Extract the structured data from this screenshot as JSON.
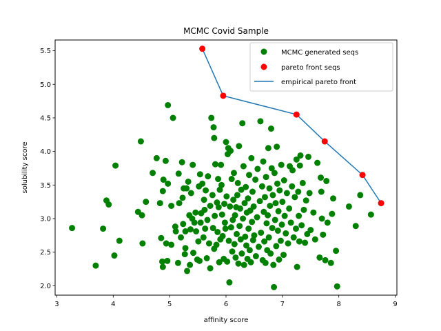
{
  "chart_data": {
    "type": "scatter",
    "title": "MCMC Covid Sample",
    "xlabel": "affinity score",
    "ylabel": "solubility score",
    "xlim": [
      2.97,
      9.03
    ],
    "ylim": [
      1.86,
      5.66
    ],
    "xticks": [
      "3",
      "4",
      "5",
      "6",
      "7",
      "8",
      "9"
    ],
    "yticks": [
      "2.0",
      "2.5",
      "3.0",
      "3.5",
      "4.0",
      "4.5",
      "5.0",
      "5.5"
    ],
    "grid": false,
    "legend_position": "top-right",
    "series": [
      {
        "name": "MCMC generated seqs",
        "kind": "scatter",
        "color": "#008000",
        "points": [
          [
            3.27,
            2.86
          ],
          [
            3.69,
            2.3
          ],
          [
            3.82,
            2.85
          ],
          [
            3.88,
            3.27
          ],
          [
            3.92,
            3.21
          ],
          [
            4.02,
            2.45
          ],
          [
            4.04,
            3.79
          ],
          [
            4.11,
            2.67
          ],
          [
            4.44,
            3.1
          ],
          [
            4.49,
            4.15
          ],
          [
            4.51,
            3.05
          ],
          [
            4.52,
            2.63
          ],
          [
            4.58,
            3.25
          ],
          [
            4.7,
            3.68
          ],
          [
            4.77,
            3.9
          ],
          [
            4.83,
            3.23
          ],
          [
            4.85,
            2.71
          ],
          [
            4.87,
            2.36
          ],
          [
            4.88,
            2.28
          ],
          [
            4.88,
            3.41
          ],
          [
            4.89,
            3.58
          ],
          [
            4.93,
            3.86
          ],
          [
            4.94,
            2.63
          ],
          [
            4.96,
            2.37
          ],
          [
            4.97,
            4.69
          ],
          [
            4.97,
            3.52
          ],
          [
            5.03,
            2.61
          ],
          [
            5.03,
            3.19
          ],
          [
            5.06,
            4.5
          ],
          [
            5.1,
            2.88
          ],
          [
            5.11,
            2.81
          ],
          [
            5.15,
            2.34
          ],
          [
            5.16,
            3.67
          ],
          [
            5.17,
            3.23
          ],
          [
            5.2,
            2.72
          ],
          [
            5.22,
            3.84
          ],
          [
            5.23,
            3.31
          ],
          [
            5.24,
            2.92
          ],
          [
            5.25,
            3.45
          ],
          [
            5.27,
            2.47
          ],
          [
            5.28,
            2.81
          ],
          [
            5.28,
            2.56
          ],
          [
            5.3,
            3.45
          ],
          [
            5.31,
            2.22
          ],
          [
            5.33,
            3.55
          ],
          [
            5.35,
            3.05
          ],
          [
            5.36,
            2.31
          ],
          [
            5.37,
            2.84
          ],
          [
            5.38,
            3.38
          ],
          [
            5.4,
            3.0
          ],
          [
            5.41,
            3.8
          ],
          [
            5.42,
            2.49
          ],
          [
            5.44,
            2.94
          ],
          [
            5.46,
            3.09
          ],
          [
            5.47,
            2.81
          ],
          [
            5.49,
            2.39
          ],
          [
            5.51,
            2.66
          ],
          [
            5.52,
            3.48
          ],
          [
            5.53,
            2.37
          ],
          [
            5.54,
            3.66
          ],
          [
            5.55,
            2.94
          ],
          [
            5.56,
            3.08
          ],
          [
            5.58,
            3.52
          ],
          [
            5.6,
            2.72
          ],
          [
            5.61,
            3.28
          ],
          [
            5.62,
            3.13
          ],
          [
            5.63,
            2.85
          ],
          [
            5.64,
            3.42
          ],
          [
            5.66,
            2.41
          ],
          [
            5.67,
            2.98
          ],
          [
            5.68,
            3.63
          ],
          [
            5.7,
            2.63
          ],
          [
            5.72,
            2.26
          ],
          [
            5.72,
            3.19
          ],
          [
            5.74,
            4.5
          ],
          [
            5.76,
            3.35
          ],
          [
            5.77,
            2.86
          ],
          [
            5.78,
            4.36
          ],
          [
            5.79,
            4.2
          ],
          [
            5.79,
            2.55
          ],
          [
            5.8,
            3.04
          ],
          [
            5.81,
            3.81
          ],
          [
            5.83,
            2.61
          ],
          [
            5.84,
            3.24
          ],
          [
            5.85,
            2.8
          ],
          [
            5.86,
            3.59
          ],
          [
            5.87,
            3.17
          ],
          [
            5.88,
            2.35
          ],
          [
            5.89,
            3.43
          ],
          [
            5.9,
            2.69
          ],
          [
            5.91,
            3.8
          ],
          [
            5.92,
            3.5
          ],
          [
            5.93,
            3.06
          ],
          [
            5.94,
            2.74
          ],
          [
            5.96,
            2.4
          ],
          [
            5.97,
            3.22
          ],
          [
            5.98,
            2.94
          ],
          [
            5.99,
            2.85
          ],
          [
            6.0,
            4.14
          ],
          [
            6.01,
            3.33
          ],
          [
            6.02,
            2.36
          ],
          [
            6.03,
            3.96
          ],
          [
            6.04,
            4.05
          ],
          [
            6.05,
            2.67
          ],
          [
            6.06,
            2.05
          ],
          [
            6.07,
            3.18
          ],
          [
            6.08,
            4.01
          ],
          [
            6.09,
            2.87
          ],
          [
            6.1,
            3.59
          ],
          [
            6.11,
            2.51
          ],
          [
            6.12,
            2.98
          ],
          [
            6.13,
            3.28
          ],
          [
            6.14,
            3.68
          ],
          [
            6.15,
            2.62
          ],
          [
            6.16,
            3.05
          ],
          [
            6.17,
            2.42
          ],
          [
            6.18,
            3.17
          ],
          [
            6.19,
            2.77
          ],
          [
            6.2,
            3.35
          ],
          [
            6.21,
            3.53
          ],
          [
            6.22,
            2.33
          ],
          [
            6.23,
            4.08
          ],
          [
            6.24,
            2.89
          ],
          [
            6.25,
            3.15
          ],
          [
            6.26,
            2.69
          ],
          [
            6.27,
            3.43
          ],
          [
            6.28,
            2.48
          ],
          [
            6.29,
            4.42
          ],
          [
            6.3,
            3.0
          ],
          [
            6.31,
            3.78
          ],
          [
            6.32,
            2.31
          ],
          [
            6.33,
            3.23
          ],
          [
            6.34,
            2.73
          ],
          [
            6.35,
            3.47
          ],
          [
            6.36,
            2.6
          ],
          [
            6.37,
            3.09
          ],
          [
            6.38,
            2.4
          ],
          [
            6.39,
            3.3
          ],
          [
            6.4,
            2.85
          ],
          [
            6.41,
            3.65
          ],
          [
            6.42,
            2.53
          ],
          [
            6.43,
            3.12
          ],
          [
            6.44,
            2.35
          ],
          [
            6.45,
            3.9
          ],
          [
            6.46,
            2.95
          ],
          [
            6.47,
            3.4
          ],
          [
            6.48,
            2.68
          ],
          [
            6.49,
            3.18
          ],
          [
            6.5,
            2.75
          ],
          [
            6.52,
            3.58
          ],
          [
            6.53,
            2.44
          ],
          [
            6.55,
            3.02
          ],
          [
            6.56,
            3.74
          ],
          [
            6.58,
            2.58
          ],
          [
            6.6,
            3.26
          ],
          [
            6.61,
            4.45
          ],
          [
            6.62,
            2.79
          ],
          [
            6.64,
            3.48
          ],
          [
            6.65,
            2.38
          ],
          [
            6.66,
            3.85
          ],
          [
            6.67,
            3.1
          ],
          [
            6.68,
            2.66
          ],
          [
            6.69,
            3.32
          ],
          [
            6.7,
            2.34
          ],
          [
            6.71,
            3.62
          ],
          [
            6.72,
            2.93
          ],
          [
            6.73,
            2.53
          ],
          [
            6.74,
            3.05
          ],
          [
            6.75,
            4.05
          ],
          [
            6.76,
            2.72
          ],
          [
            6.77,
            3.45
          ],
          [
            6.78,
            3.19
          ],
          [
            6.79,
            2.48
          ],
          [
            6.8,
            4.34
          ],
          [
            6.81,
            3.75
          ],
          [
            6.82,
            2.86
          ],
          [
            6.83,
            3.35
          ],
          [
            6.84,
            2.31
          ],
          [
            6.85,
            1.98
          ],
          [
            6.86,
            3.68
          ],
          [
            6.87,
            2.98
          ],
          [
            6.88,
            3.23
          ],
          [
            6.89,
            2.59
          ],
          [
            6.9,
            4.07
          ],
          [
            6.91,
            3.52
          ],
          [
            6.92,
            2.82
          ],
          [
            6.93,
            3.11
          ],
          [
            6.94,
            2.39
          ],
          [
            6.95,
            3.42
          ],
          [
            6.97,
            2.67
          ],
          [
            6.98,
            3.8
          ],
          [
            6.99,
            2.91
          ],
          [
            7.0,
            3.25
          ],
          [
            7.02,
            2.46
          ],
          [
            7.03,
            3.57
          ],
          [
            7.04,
            3.04
          ],
          [
            7.06,
            2.78
          ],
          [
            7.08,
            3.38
          ],
          [
            7.1,
            2.63
          ],
          [
            7.12,
            3.15
          ],
          [
            7.13,
            3.78
          ],
          [
            7.15,
            2.94
          ],
          [
            7.17,
            3.48
          ],
          [
            7.18,
            3.72
          ],
          [
            7.2,
            2.72
          ],
          [
            7.22,
            3.32
          ],
          [
            7.24,
            2.85
          ],
          [
            7.25,
            3.88
          ],
          [
            7.26,
            2.28
          ],
          [
            7.28,
            3.4
          ],
          [
            7.29,
            3.04
          ],
          [
            7.3,
            2.66
          ],
          [
            7.31,
            3.79
          ],
          [
            7.32,
            3.94
          ],
          [
            7.34,
            2.9
          ],
          [
            7.36,
            3.53
          ],
          [
            7.38,
            3.13
          ],
          [
            7.4,
            2.64
          ],
          [
            7.42,
            3.27
          ],
          [
            7.44,
            2.77
          ],
          [
            7.46,
            3.92
          ],
          [
            7.48,
            3.38
          ],
          [
            7.5,
            2.83
          ],
          [
            7.55,
            3.09
          ],
          [
            7.58,
            2.69
          ],
          [
            7.62,
            3.83
          ],
          [
            7.66,
            2.42
          ],
          [
            7.68,
            3.61
          ],
          [
            7.69,
            3.4
          ],
          [
            7.7,
            3.0
          ],
          [
            7.72,
            2.76
          ],
          [
            7.76,
            2.38
          ],
          [
            7.78,
            3.56
          ],
          [
            7.8,
            2.94
          ],
          [
            7.86,
            2.34
          ],
          [
            7.88,
            3.07
          ],
          [
            7.9,
            3.3
          ],
          [
            7.95,
            2.52
          ],
          [
            7.97,
            1.99
          ],
          [
            8.18,
            3.18
          ],
          [
            8.3,
            2.89
          ],
          [
            8.38,
            3.35
          ],
          [
            8.57,
            3.06
          ]
        ]
      },
      {
        "name": "pareto front seqs",
        "kind": "scatter",
        "color": "#ff0000",
        "points": [
          [
            5.58,
            5.53
          ],
          [
            5.95,
            4.83
          ],
          [
            7.25,
            4.55
          ],
          [
            7.75,
            4.15
          ],
          [
            8.42,
            3.65
          ],
          [
            8.75,
            3.23
          ]
        ]
      },
      {
        "name": "empirical pareto front",
        "kind": "line",
        "color": "#1f77b4",
        "points": [
          [
            5.58,
            5.53
          ],
          [
            5.95,
            4.83
          ],
          [
            7.25,
            4.55
          ],
          [
            7.75,
            4.15
          ],
          [
            8.42,
            3.65
          ],
          [
            8.75,
            3.23
          ]
        ]
      }
    ]
  }
}
